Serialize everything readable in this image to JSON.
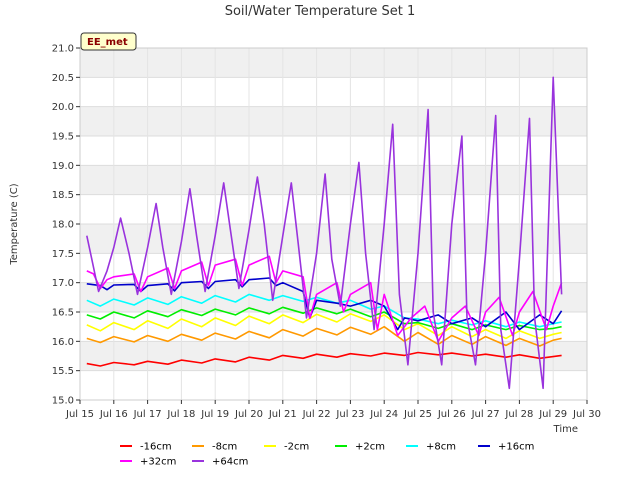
{
  "chart_data": {
    "type": "line",
    "title": "Soil/Water Temperature Set 1",
    "xlabel": "Time",
    "ylabel": "Temperature (C)",
    "badge": "EE_met",
    "ylim": [
      15.0,
      21.0
    ],
    "xlim": [
      15,
      30
    ],
    "yticks": [
      "15.0",
      "15.5",
      "16.0",
      "16.5",
      "17.0",
      "17.5",
      "18.0",
      "18.5",
      "19.0",
      "19.5",
      "20.0",
      "20.5",
      "21.0"
    ],
    "xticks": [
      "Jul 15",
      "Jul 16",
      "Jul 17",
      "Jul 18",
      "Jul 19",
      "Jul 20",
      "Jul 21",
      "Jul 22",
      "Jul 23",
      "Jul 24",
      "Jul 25",
      "Jul 26",
      "Jul 27",
      "Jul 28",
      "Jul 29",
      "Jul 30"
    ],
    "grid": true,
    "legend_position": "bottom",
    "series": [
      {
        "name": "-16cm",
        "color": "#ff0000",
        "x": [
          15.2,
          15.6,
          16.0,
          16.6,
          17.0,
          17.6,
          18.0,
          18.6,
          19.0,
          19.6,
          20.0,
          20.6,
          21.0,
          21.6,
          22.0,
          22.6,
          23.0,
          23.6,
          24.0,
          24.6,
          25.0,
          25.6,
          26.0,
          26.6,
          27.0,
          27.6,
          28.0,
          28.6,
          29.0,
          29.25
        ],
        "y": [
          15.62,
          15.58,
          15.64,
          15.6,
          15.66,
          15.61,
          15.68,
          15.63,
          15.7,
          15.65,
          15.73,
          15.68,
          15.76,
          15.71,
          15.78,
          15.73,
          15.79,
          15.75,
          15.8,
          15.76,
          15.81,
          15.77,
          15.8,
          15.75,
          15.78,
          15.73,
          15.77,
          15.71,
          15.74,
          15.76
        ]
      },
      {
        "name": "-8cm",
        "color": "#ff9900",
        "x": [
          15.2,
          15.6,
          16.0,
          16.6,
          17.0,
          17.6,
          18.0,
          18.6,
          19.0,
          19.6,
          20.0,
          20.6,
          21.0,
          21.6,
          22.0,
          22.6,
          23.0,
          23.6,
          24.0,
          24.6,
          25.0,
          25.6,
          26.0,
          26.6,
          27.0,
          27.6,
          28.0,
          28.6,
          29.0,
          29.25
        ],
        "y": [
          16.05,
          15.98,
          16.08,
          15.99,
          16.1,
          16.0,
          16.12,
          16.02,
          16.14,
          16.04,
          16.17,
          16.06,
          16.2,
          16.09,
          16.22,
          16.11,
          16.24,
          16.12,
          16.25,
          16.0,
          16.15,
          15.95,
          16.1,
          15.95,
          16.08,
          15.93,
          16.05,
          15.92,
          16.02,
          16.05
        ]
      },
      {
        "name": "-2cm",
        "color": "#ffff00",
        "x": [
          15.2,
          15.6,
          16.0,
          16.6,
          17.0,
          17.6,
          18.0,
          18.6,
          19.0,
          19.6,
          20.0,
          20.6,
          21.0,
          21.6,
          22.0,
          22.6,
          23.0,
          23.6,
          24.0,
          24.6,
          25.0,
          25.6,
          26.0,
          26.6,
          27.0,
          27.6,
          28.0,
          28.6,
          29.0,
          29.25
        ],
        "y": [
          16.28,
          16.18,
          16.32,
          16.2,
          16.35,
          16.22,
          16.38,
          16.25,
          16.4,
          16.27,
          16.43,
          16.3,
          16.45,
          16.32,
          16.46,
          16.33,
          16.47,
          16.34,
          16.45,
          16.2,
          16.3,
          16.1,
          16.25,
          16.08,
          16.2,
          16.05,
          16.18,
          16.05,
          16.12,
          16.15
        ]
      },
      {
        "name": "+2cm",
        "color": "#00ee00",
        "x": [
          15.2,
          15.6,
          16.0,
          16.6,
          17.0,
          17.6,
          18.0,
          18.6,
          19.0,
          19.6,
          20.0,
          20.6,
          21.0,
          21.6,
          22.0,
          22.6,
          23.0,
          23.6,
          24.0,
          24.6,
          25.0,
          25.6,
          26.0,
          26.6,
          27.0,
          27.6,
          28.0,
          28.6,
          29.0,
          29.25
        ],
        "y": [
          16.45,
          16.38,
          16.5,
          16.4,
          16.52,
          16.42,
          16.54,
          16.44,
          16.55,
          16.45,
          16.57,
          16.47,
          16.58,
          16.48,
          16.57,
          16.47,
          16.55,
          16.42,
          16.5,
          16.3,
          16.32,
          16.22,
          16.3,
          16.2,
          16.28,
          16.2,
          16.27,
          16.2,
          16.22,
          16.25
        ]
      },
      {
        "name": "+8cm",
        "color": "#00ffff",
        "x": [
          15.2,
          15.6,
          16.0,
          16.6,
          17.0,
          17.6,
          18.0,
          18.6,
          19.0,
          19.6,
          20.0,
          20.6,
          21.0,
          21.6,
          22.0,
          22.6,
          23.0,
          23.6,
          24.0,
          24.6,
          25.0,
          25.6,
          26.0,
          26.6,
          27.0,
          27.6,
          28.0,
          28.6,
          29.0,
          29.25
        ],
        "y": [
          16.7,
          16.6,
          16.72,
          16.62,
          16.74,
          16.63,
          16.76,
          16.65,
          16.78,
          16.67,
          16.8,
          16.7,
          16.78,
          16.68,
          16.75,
          16.65,
          16.7,
          16.55,
          16.6,
          16.4,
          16.38,
          16.3,
          16.36,
          16.28,
          16.35,
          16.25,
          16.33,
          16.25,
          16.3,
          16.33
        ]
      },
      {
        "name": "+16cm",
        "color": "#0000cc",
        "x": [
          15.2,
          15.6,
          15.8,
          16.0,
          16.6,
          16.8,
          17.0,
          17.6,
          17.8,
          18.0,
          18.6,
          18.8,
          19.0,
          19.6,
          19.8,
          20.0,
          20.6,
          20.8,
          21.0,
          21.6,
          21.8,
          22.0,
          22.6,
          23.0,
          23.6,
          24.0,
          24.4,
          24.6,
          25.0,
          25.6,
          26.0,
          26.6,
          27.0,
          27.6,
          28.0,
          28.6,
          29.0,
          29.25
        ],
        "y": [
          16.98,
          16.95,
          16.88,
          16.96,
          16.97,
          16.85,
          16.95,
          16.98,
          16.86,
          17.0,
          17.02,
          16.9,
          17.02,
          17.05,
          16.93,
          17.05,
          17.08,
          16.95,
          17.0,
          16.85,
          16.4,
          16.7,
          16.65,
          16.6,
          16.7,
          16.6,
          16.2,
          16.4,
          16.35,
          16.45,
          16.3,
          16.4,
          16.25,
          16.5,
          16.2,
          16.45,
          16.3,
          16.52
        ]
      },
      {
        "name": "+32cm",
        "color": "#ff00ff",
        "x": [
          15.2,
          15.4,
          15.6,
          15.8,
          16.0,
          16.6,
          16.8,
          17.0,
          17.6,
          17.8,
          18.0,
          18.6,
          18.8,
          19.0,
          19.6,
          19.8,
          20.0,
          20.6,
          20.8,
          21.0,
          21.6,
          21.8,
          22.0,
          22.6,
          22.8,
          23.0,
          23.6,
          23.8,
          24.0,
          24.4,
          24.8,
          25.2,
          25.6,
          26.0,
          26.4,
          26.8,
          27.0,
          27.4,
          27.8,
          28.0,
          28.4,
          28.8,
          29.0,
          29.25
        ],
        "y": [
          17.2,
          17.15,
          16.9,
          17.05,
          17.1,
          17.15,
          16.85,
          17.1,
          17.25,
          16.9,
          17.2,
          17.35,
          16.95,
          17.3,
          17.4,
          16.95,
          17.3,
          17.45,
          17.0,
          17.2,
          17.1,
          16.4,
          16.8,
          17.0,
          16.5,
          16.8,
          17.0,
          16.2,
          16.8,
          16.1,
          16.4,
          16.6,
          16.0,
          16.4,
          16.6,
          16.1,
          16.5,
          16.75,
          16.1,
          16.5,
          16.85,
          16.2,
          16.6,
          17.0
        ]
      },
      {
        "name": "+64cm",
        "color": "#9933dd",
        "x": [
          15.2,
          15.35,
          15.55,
          15.8,
          16.0,
          16.2,
          16.45,
          16.7,
          17.0,
          17.25,
          17.45,
          17.7,
          18.0,
          18.25,
          18.45,
          18.7,
          19.0,
          19.25,
          19.45,
          19.7,
          20.0,
          20.25,
          20.45,
          20.7,
          21.0,
          21.25,
          21.45,
          21.7,
          22.0,
          22.25,
          22.45,
          22.7,
          23.0,
          23.25,
          23.45,
          23.7,
          24.0,
          24.25,
          24.45,
          24.7,
          25.0,
          25.3,
          25.45,
          25.7,
          26.0,
          26.3,
          26.45,
          26.7,
          27.0,
          27.3,
          27.45,
          27.7,
          28.0,
          28.3,
          28.45,
          28.7,
          29.0,
          29.25
        ],
        "y": [
          17.8,
          17.4,
          16.85,
          17.2,
          17.6,
          18.1,
          17.5,
          16.8,
          17.6,
          18.35,
          17.6,
          16.8,
          17.7,
          18.6,
          17.8,
          16.85,
          17.8,
          18.7,
          17.9,
          16.9,
          17.9,
          18.8,
          18.0,
          16.7,
          17.8,
          18.7,
          17.7,
          16.4,
          17.5,
          18.85,
          17.4,
          16.6,
          18.0,
          19.05,
          17.5,
          16.2,
          18.0,
          19.7,
          16.8,
          15.6,
          17.5,
          19.95,
          16.5,
          15.6,
          18.0,
          19.5,
          16.4,
          15.6,
          17.5,
          19.85,
          16.2,
          15.2,
          17.4,
          19.8,
          16.4,
          15.2,
          20.5,
          16.8
        ]
      }
    ]
  }
}
